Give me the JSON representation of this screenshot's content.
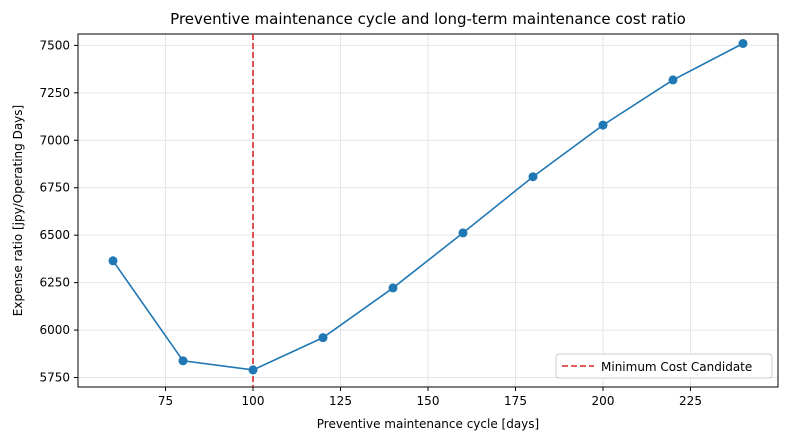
{
  "chart_data": {
    "type": "line",
    "title": "Preventive maintenance cycle and long-term maintenance cost ratio",
    "xlabel": "Preventive maintenance cycle [days]",
    "ylabel": "Expense ratio [jpy/Operating Days]",
    "xlim": [
      50,
      250
    ],
    "ylim": [
      5700,
      7560
    ],
    "xticks": [
      75,
      100,
      125,
      150,
      175,
      200,
      225
    ],
    "yticks": [
      5750,
      6000,
      6250,
      6500,
      6750,
      7000,
      7250,
      7500
    ],
    "grid": true,
    "legend_position": "lower-right",
    "series": [
      {
        "color": "#1f77b4",
        "x": [
          60,
          80,
          100,
          120,
          140,
          160,
          180,
          200,
          220,
          240
        ],
        "y": [
          6365,
          5838,
          5790,
          5960,
          6222,
          6512,
          6808,
          7080,
          7318,
          7510
        ]
      }
    ],
    "vline": {
      "x": 100,
      "label": "Minimum Cost Candidate",
      "color": "#d62728",
      "style": "dashed"
    }
  }
}
